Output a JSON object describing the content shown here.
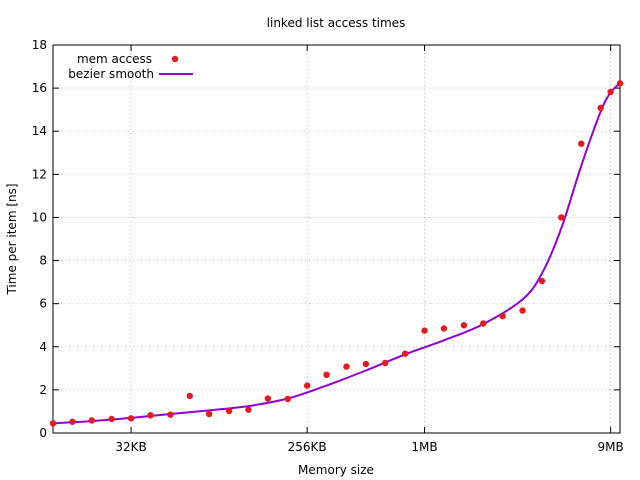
{
  "chart_data": {
    "type": "scatter",
    "title": "linked list access times",
    "xlabel": "Memory size",
    "ylabel": "Time per item [ns]",
    "ylim": [
      0,
      18
    ],
    "yticks": [
      0,
      2,
      4,
      6,
      8,
      10,
      12,
      14,
      16,
      18
    ],
    "x_scale": "log",
    "xticks": [
      {
        "label": "32KB",
        "x": 15
      },
      {
        "label": "256KB",
        "x": 18
      },
      {
        "label": "1MB",
        "x": 20
      },
      {
        "label": "9MB",
        "x": 23.17
      }
    ],
    "xlim": [
      13.67,
      23.33
    ],
    "grid": true,
    "legend_position": "top-left",
    "series": [
      {
        "name": "mem access",
        "kind": "points",
        "color": "#e41a1c",
        "points": [
          [
            13.67,
            0.45
          ],
          [
            14.0,
            0.52
          ],
          [
            14.33,
            0.58
          ],
          [
            14.67,
            0.65
          ],
          [
            15.0,
            0.68
          ],
          [
            15.33,
            0.82
          ],
          [
            15.67,
            0.85
          ],
          [
            16.0,
            1.72
          ],
          [
            16.33,
            0.88
          ],
          [
            16.67,
            1.02
          ],
          [
            17.0,
            1.08
          ],
          [
            17.33,
            1.6
          ],
          [
            17.67,
            1.58
          ],
          [
            18.0,
            2.2
          ],
          [
            18.33,
            2.7
          ],
          [
            18.67,
            3.08
          ],
          [
            19.0,
            3.2
          ],
          [
            19.33,
            3.25
          ],
          [
            19.67,
            3.68
          ],
          [
            20.0,
            4.75
          ],
          [
            20.33,
            4.85
          ],
          [
            20.67,
            5.0
          ],
          [
            21.0,
            5.08
          ],
          [
            21.33,
            5.42
          ],
          [
            21.67,
            5.68
          ],
          [
            22.0,
            7.05
          ],
          [
            22.33,
            10.0
          ],
          [
            22.67,
            13.42
          ],
          [
            23.0,
            15.08
          ],
          [
            23.17,
            15.82
          ],
          [
            23.33,
            16.22
          ]
        ]
      },
      {
        "name": "bezier smooth",
        "kind": "line",
        "color": "#9400d3",
        "points": [
          [
            13.67,
            0.45
          ],
          [
            14.33,
            0.55
          ],
          [
            15.0,
            0.7
          ],
          [
            15.67,
            0.88
          ],
          [
            16.33,
            1.05
          ],
          [
            17.0,
            1.25
          ],
          [
            17.67,
            1.6
          ],
          [
            18.33,
            2.2
          ],
          [
            19.0,
            2.9
          ],
          [
            19.67,
            3.65
          ],
          [
            20.33,
            4.3
          ],
          [
            21.0,
            5.05
          ],
          [
            21.67,
            6.2
          ],
          [
            22.0,
            7.4
          ],
          [
            22.33,
            9.5
          ],
          [
            22.67,
            12.4
          ],
          [
            23.0,
            14.9
          ],
          [
            23.17,
            15.8
          ],
          [
            23.33,
            16.22
          ]
        ]
      }
    ]
  }
}
